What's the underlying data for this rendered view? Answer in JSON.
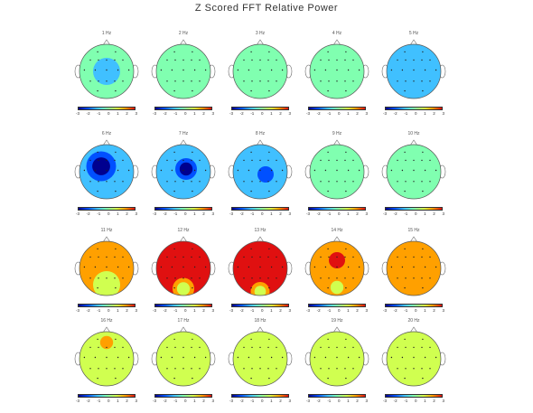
{
  "title": "Z Scored FFT Relative Power",
  "colorbar": {
    "ticks": [
      "-3",
      "-2",
      "-1",
      "0",
      "1",
      "2",
      "3"
    ],
    "colors": [
      "#00008f",
      "#0050ff",
      "#40c0ff",
      "#80ffb0",
      "#d0ff50",
      "#ffa000",
      "#e01010"
    ]
  },
  "maps": [
    {
      "label": "1 Hz",
      "base": -0.5,
      "blobs": [
        [
          0,
          0,
          -0.8,
          0.5
        ]
      ]
    },
    {
      "label": "2 Hz",
      "base": -0.2,
      "blobs": [
        [
          0,
          0,
          -0.3,
          0.5
        ]
      ]
    },
    {
      "label": "3 Hz",
      "base": 0.0,
      "blobs": [
        [
          -0.2,
          0,
          -0.3,
          0.4
        ]
      ]
    },
    {
      "label": "4 Hz",
      "base": 0.0,
      "blobs": [
        [
          0,
          0,
          -0.2,
          0.4
        ]
      ]
    },
    {
      "label": "5 Hz",
      "base": -0.6,
      "blobs": [
        [
          0,
          -0.5,
          -0.8,
          0.3
        ]
      ]
    },
    {
      "label": "6 Hz",
      "base": -1.5,
      "blobs": [
        [
          -0.2,
          -0.2,
          -1.8,
          0.55
        ]
      ]
    },
    {
      "label": "7 Hz",
      "base": -1.3,
      "blobs": [
        [
          0.1,
          -0.1,
          -1.8,
          0.4
        ]
      ]
    },
    {
      "label": "8 Hz",
      "base": -0.9,
      "blobs": [
        [
          0.2,
          0.1,
          -1.5,
          0.3
        ]
      ]
    },
    {
      "label": "9 Hz",
      "base": -0.4,
      "blobs": []
    },
    {
      "label": "10 Hz",
      "base": 0.3,
      "blobs": []
    },
    {
      "label": "11 Hz",
      "base": 1.6,
      "blobs": [
        [
          0,
          0.6,
          -0.4,
          0.5
        ]
      ]
    },
    {
      "label": "12 Hz",
      "base": 2.8,
      "blobs": [
        [
          0,
          0.75,
          -1.8,
          0.4
        ]
      ]
    },
    {
      "label": "13 Hz",
      "base": 2.9,
      "blobs": [
        [
          0,
          0.85,
          -1.6,
          0.35
        ]
      ]
    },
    {
      "label": "14 Hz",
      "base": 2.0,
      "blobs": [
        [
          0,
          -0.3,
          0.9,
          0.5
        ],
        [
          0,
          0.7,
          -0.9,
          0.4
        ]
      ]
    },
    {
      "label": "15 Hz",
      "base": 1.5,
      "blobs": [
        [
          0,
          -0.5,
          0.5,
          0.4
        ]
      ]
    },
    {
      "label": "16 Hz",
      "base": 1.0,
      "blobs": [
        [
          0,
          -0.6,
          0.9,
          0.4
        ]
      ]
    },
    {
      "label": "17 Hz",
      "base": 0.9,
      "blobs": [
        [
          0,
          -0.6,
          0.4,
          0.4
        ]
      ]
    },
    {
      "label": "18 Hz",
      "base": 0.7,
      "blobs": []
    },
    {
      "label": "19 Hz",
      "base": 0.6,
      "blobs": []
    },
    {
      "label": "20 Hz",
      "base": 0.5,
      "blobs": []
    }
  ]
}
